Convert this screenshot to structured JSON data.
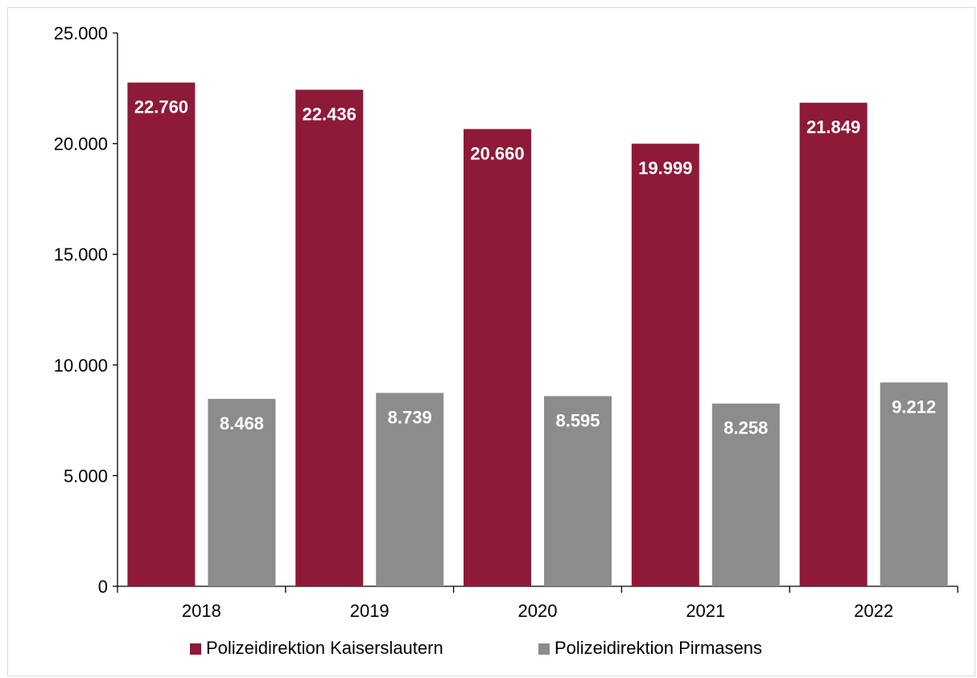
{
  "chart_data": {
    "type": "bar",
    "title": "",
    "xlabel": "",
    "ylabel": "",
    "categories": [
      "2018",
      "2019",
      "2020",
      "2021",
      "2022"
    ],
    "series": [
      {
        "name": "Polizeidirektion Kaiserslautern",
        "color": "#8e1a38",
        "values": [
          22760,
          22436,
          20660,
          19999,
          21849
        ],
        "labels": [
          "22.760",
          "22.436",
          "20.660",
          "19.999",
          "21.849"
        ]
      },
      {
        "name": "Polizeidirektion Pirmasens",
        "color": "#8c8c8c",
        "values": [
          8468,
          8739,
          8595,
          8258,
          9212
        ],
        "labels": [
          "8.468",
          "8.739",
          "8.595",
          "8.258",
          "9.212"
        ]
      }
    ],
    "ylim": [
      0,
      25000
    ],
    "yticks": [
      0,
      5000,
      10000,
      15000,
      20000,
      25000
    ],
    "ytick_labels": [
      "0",
      "5.000",
      "10.000",
      "15.000",
      "20.000",
      "25.000"
    ],
    "grid": false,
    "legend_position": "bottom"
  }
}
